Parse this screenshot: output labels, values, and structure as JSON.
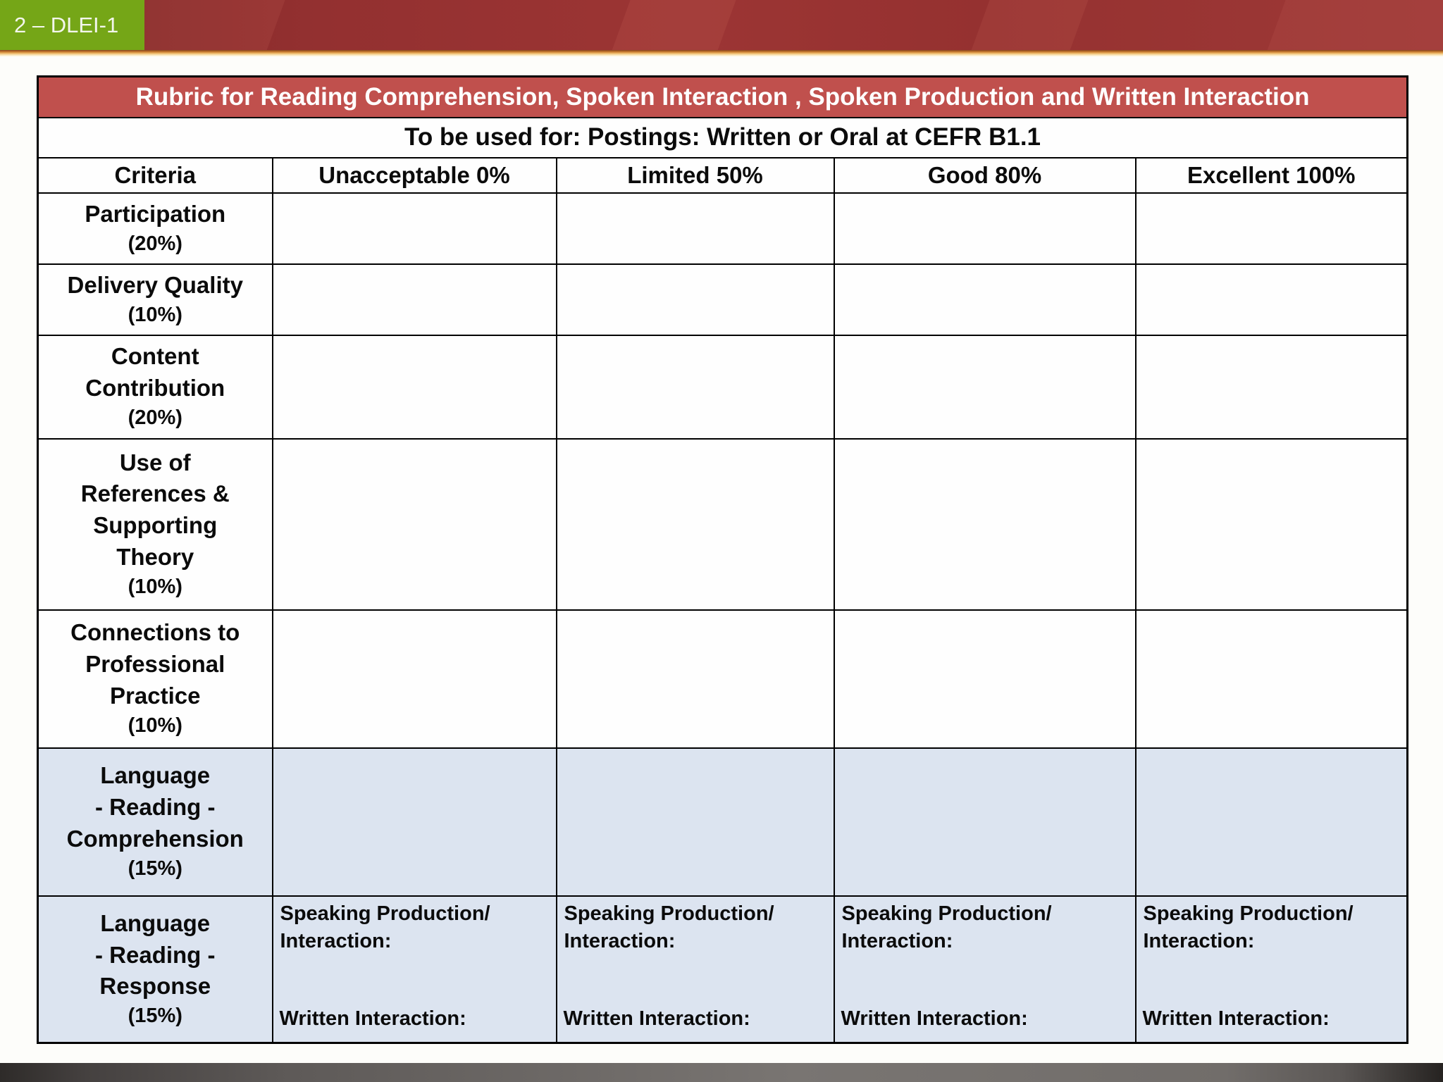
{
  "badge": {
    "label": "2 – DLEI-1"
  },
  "table": {
    "title": "Rubric for Reading Comprehension, Spoken Interaction , Spoken Production and Written Interaction",
    "subtitle": "To be used for: Postings: Written or Oral at CEFR B1.1",
    "columns": [
      "Criteria",
      "Unacceptable 0%",
      "Limited 50%",
      "Good 80%",
      "Excellent 100%"
    ],
    "rows": [
      {
        "label_lines": [
          "Participation"
        ],
        "weight": "(20%)",
        "highlight": false,
        "cells": [
          "",
          "",
          "",
          ""
        ]
      },
      {
        "label_lines": [
          "Delivery Quality"
        ],
        "weight": "(10%)",
        "highlight": false,
        "cells": [
          "",
          "",
          "",
          ""
        ]
      },
      {
        "label_lines": [
          "Content",
          "Contribution"
        ],
        "weight": "(20%)",
        "highlight": false,
        "cells": [
          "",
          "",
          "",
          ""
        ]
      },
      {
        "label_lines": [
          "Use of",
          "References &",
          "Supporting",
          "Theory"
        ],
        "weight": "(10%)",
        "highlight": false,
        "cells": [
          "",
          "",
          "",
          ""
        ]
      },
      {
        "label_lines": [
          "Connections to",
          "Professional",
          "Practice"
        ],
        "weight": "(10%)",
        "highlight": false,
        "cells": [
          "",
          "",
          "",
          ""
        ]
      },
      {
        "label_lines": [
          "Language",
          "- Reading -",
          "Comprehension"
        ],
        "weight": "(15%)",
        "highlight": true,
        "cells": [
          "",
          "",
          "",
          ""
        ]
      },
      {
        "label_lines": [
          "Language",
          "- Reading -",
          "Response"
        ],
        "weight": "(15%)",
        "highlight": true,
        "cells": [
          {
            "top": "Speaking Production/ Interaction:",
            "bottom": "Written Interaction:"
          },
          {
            "top": "Speaking Production/ Interaction:",
            "bottom": "Written Interaction:"
          },
          {
            "top": "Speaking Production/ Interaction:",
            "bottom": "Written Interaction:"
          },
          {
            "top": "Speaking Production/ Interaction:",
            "bottom": "Written Interaction:"
          }
        ]
      }
    ]
  },
  "colors": {
    "title_bar": "#C0504D",
    "highlight_row": "#DCE4F0",
    "badge_green": "#75A617",
    "banner_red": "#9C3534"
  }
}
